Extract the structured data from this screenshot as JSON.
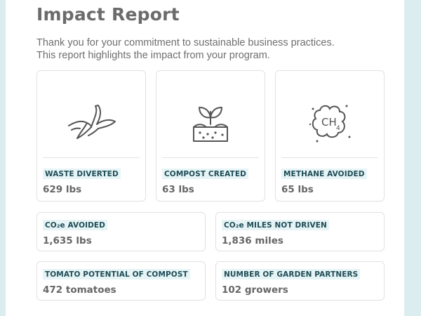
{
  "report": {
    "title": "Impact Report",
    "intro_line1": "Thank you for your commitment to sustainable business practices.",
    "intro_line2": "This report highlights the impact from your program."
  },
  "metrics": [
    {
      "label": "WASTE DIVERTED",
      "value": "629 lbs",
      "icon": "banana-peel-icon"
    },
    {
      "label": "COMPOST CREATED",
      "value": "63 lbs",
      "icon": "sprout-in-soil-icon"
    },
    {
      "label": "METHANE AVOIDED",
      "value": "65 lbs",
      "icon": "ch4-cloud-icon",
      "icon_text": "CH",
      "icon_sub": "4"
    },
    {
      "label": "CO₂e AVOIDED",
      "value": "1,635 lbs"
    },
    {
      "label": "CO₂e MILES NOT DRIVEN",
      "value": "1,836 miles"
    },
    {
      "label": "TOMATO POTENTIAL OF COMPOST",
      "value": "472 tomatoes"
    },
    {
      "label": "NUMBER OF GARDEN PARTNERS",
      "value": "102 growers"
    }
  ],
  "colors": {
    "page_background": "#dcedf0",
    "label_background": "#e6f4f6",
    "label_text": "#1f4c56",
    "title_text": "#6b6b6b"
  }
}
